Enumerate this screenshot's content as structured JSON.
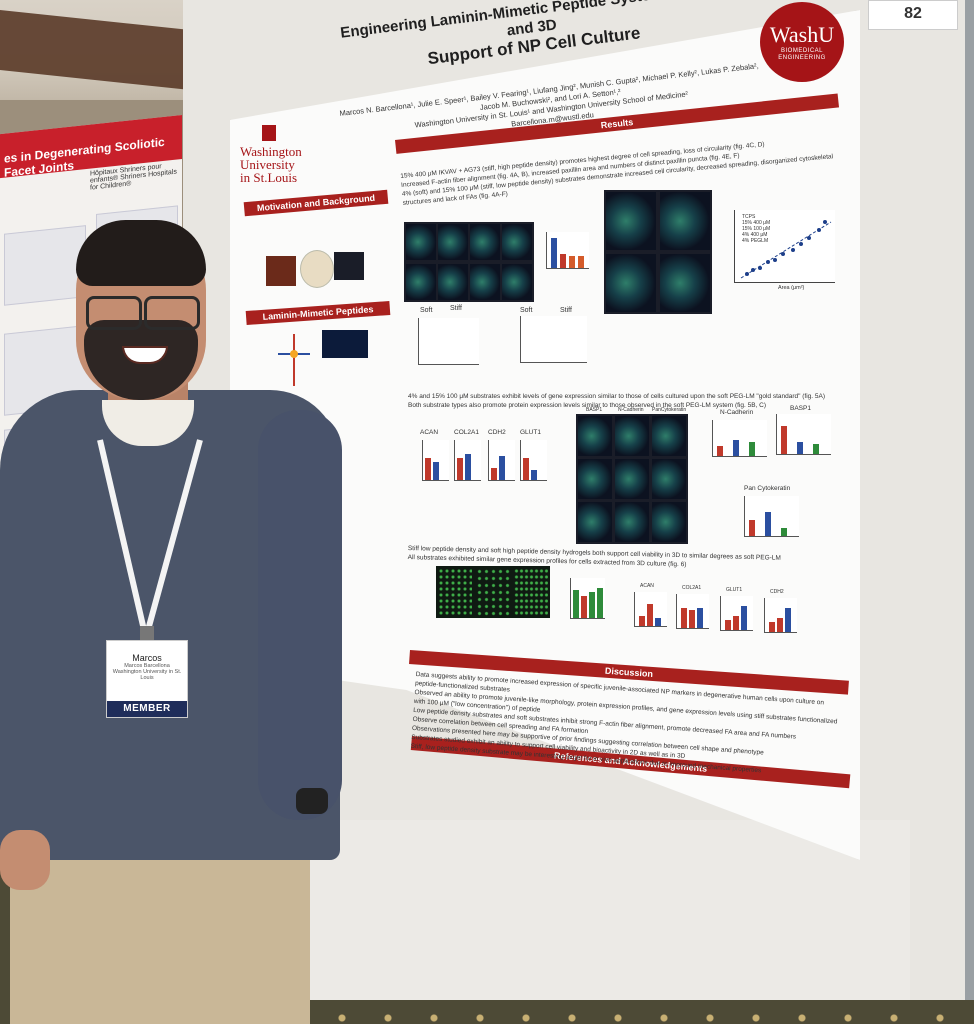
{
  "scene": {
    "colors": {
      "washu_red": "#a51417",
      "poster_red": "#a8211e",
      "shirt": "#4b5569",
      "member_blue": "#1f2d5a"
    }
  },
  "left_poster": {
    "title_line1": "es in Degenerating Scoliotic Facet Joints",
    "shriners": "Hôpitaux Shriners pour enfants® Shriners Hospitals for Children®"
  },
  "board_tag": "82",
  "poster": {
    "washu_badge": {
      "line1": "WashU",
      "line2": "BIOMEDICAL ENGINEERING"
    },
    "university_logo": [
      "Washington",
      "University",
      "in St.Louis"
    ],
    "title_line1": "Engineering Laminin-Mimetic Peptide Systems for 2D and 3D",
    "title_line2": "Support of NP Cell Culture",
    "authors": "Marcos N. Barcellona¹, Julie E. Speer¹, Bailey V. Fearing¹, Liufang Jing², Munish C. Gupta², Michael P. Kelly², Lukas P. Zebala²,",
    "authors2": "Jacob M. Buchowski², and Lori A. Setton¹,²",
    "affiliation": "Washington University in St. Louis¹ and Washington University School of Medicine²",
    "email": "Barcellona.m@wustl.edu",
    "sections": {
      "motivation": "Motivation and Background",
      "peptides": "Laminin-Mimetic Peptides",
      "results": "Results",
      "discussion": "Discussion",
      "references": "References and Acknowledgements"
    },
    "results_text": [
      "15% 400 μM IKVAV + AG73 (stiff, high peptide density) promotes highest degree of cell spreading, loss of circularity (fig. 4C, D)",
      "Increased F-actin fiber alignment (fig. 4A, B), increased paxillin area and numbers of distinct paxillin puncta (fig. 4E, F)",
      "4% (soft) and 15% 100 μM (stiff, low peptide density) substrates demonstrate increased cell circularity, decreased spreading, disorganized cytoskeletal structures and lack of FAs (fig. 4A-F)",
      "4% and 15% 100 μM substrates exhibit levels of gene expression similar to those of cells cultured upon the soft PEG-LM \"gold standard\" (fig. 5A)",
      "Both substrate types also promote protein expression levels similar to those observed in the soft PEG-LM system (fig. 5B, C)",
      "Stiff low peptide density and soft high peptide density hydrogels both support cell viability in 3D to similar degrees as soft PEG-LM",
      "All substrates exhibited similar gene expression profiles for cells extracted from 3D culture (fig. 6)"
    ],
    "fig_labels": {
      "soft": "Soft",
      "stiff": "Stiff",
      "genes": [
        "ACAN",
        "COL2A1",
        "CDH2",
        "GLUT1"
      ],
      "proteins": [
        "N-Cadherin",
        "BASP1",
        "Pan Cytokeratin"
      ],
      "stains": [
        "BASP1",
        "N-Cadherin",
        "PanCytokeratin"
      ],
      "legend": [
        "TCPS",
        "15% 400 μM",
        "15% 100 μM",
        "4% 400 μM",
        "4% PEGLM"
      ],
      "area_axis": "Area (μm²)"
    },
    "discussion_text": [
      "Data suggests ability to promote increased expression of specific juvenile-associated NP markers in degenerative human cells upon culture on peptide-functionalized substrates",
      "Observed an ability to promote juvenile-like morphology, protein expression profiles, and gene expression levels using stiff substrates functionalized with 100 μM (\"low concentration\") of peptide",
      "Low peptide density substrates and soft substrates inhibit strong F-actin fiber alignment, promote decreased FA area and FA numbers",
      "Observe correlation between cell spreading and FA formation",
      "Observations presented here may be supportive of prior findings suggesting correlation between cell shape and phenotype",
      "Substrates studied exhibit an ability to support cell viability and bioactivity in 2D as well as in 3D",
      "Stiff, low peptide density substrate may be interesting target for in vivo applications due to improved mechanical properties"
    ]
  },
  "badge": {
    "name": "Marcos",
    "full_name": "Marcos Barcellona",
    "org": "Washington University in St. Louis",
    "member": "MEMBER"
  }
}
